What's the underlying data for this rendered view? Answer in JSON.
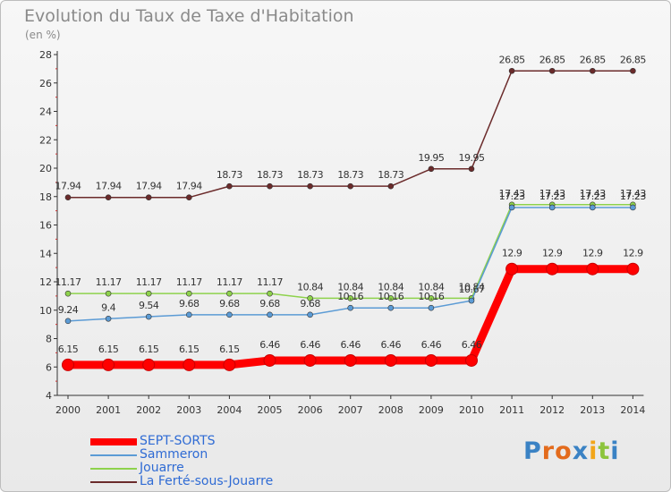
{
  "chart_data": {
    "type": "line",
    "title": "Evolution du Taux de Taxe d'Habitation",
    "subtitle": "(en %)",
    "x": [
      "2000",
      "2001",
      "2002",
      "2003",
      "2004",
      "2005",
      "2006",
      "2007",
      "2008",
      "2009",
      "2010",
      "2011",
      "2012",
      "2013",
      "2014"
    ],
    "ylim": [
      4,
      28
    ],
    "yticks": [
      4,
      6,
      8,
      10,
      12,
      14,
      16,
      18,
      20,
      22,
      24,
      26,
      28
    ],
    "grid": false,
    "legend_position": "bottom-left",
    "series": [
      {
        "name": "SEPT-SORTS",
        "color": "#ff0000",
        "values": [
          6.15,
          6.15,
          6.15,
          6.15,
          6.15,
          6.46,
          6.46,
          6.46,
          6.46,
          6.46,
          6.46,
          12.9,
          12.9,
          12.9,
          12.9
        ],
        "labels": [
          "6.15",
          "6.15",
          "6.15",
          "6.15",
          "6.15",
          "6.46",
          "6.46",
          "6.46",
          "6.46",
          "6.46",
          "6.46",
          "12.9",
          "12.9",
          "12.9",
          "12.9"
        ]
      },
      {
        "name": "Sammeron",
        "color": "#5b9bd5",
        "values": [
          9.24,
          9.4,
          9.54,
          9.68,
          9.68,
          9.68,
          9.68,
          10.16,
          10.16,
          10.16,
          10.67,
          17.23,
          17.23,
          17.23,
          17.23
        ],
        "labels": [
          "9.24",
          "9.4",
          "9.54",
          "9.68",
          "9.68",
          "9.68",
          "9.68",
          "10.16",
          "10.16",
          "10.16",
          "10.67",
          "17.23",
          "17.23",
          "17.23",
          "17.23"
        ]
      },
      {
        "name": "Jouarre",
        "color": "#8ed24c",
        "values": [
          11.17,
          11.17,
          11.17,
          11.17,
          11.17,
          11.17,
          10.84,
          10.84,
          10.84,
          10.84,
          10.84,
          17.43,
          17.43,
          17.43,
          17.43
        ],
        "labels": [
          "11.17",
          "11.17",
          "11.17",
          "11.17",
          "11.17",
          "11.17",
          "10.84",
          "10.84",
          "10.84",
          "10.84",
          "10.84",
          "17.43",
          "17.43",
          "17.43",
          "17.43"
        ]
      },
      {
        "name": "La Ferté-sous-Jouarre",
        "color": "#6b2b2b",
        "values": [
          17.94,
          17.94,
          17.94,
          17.94,
          18.73,
          18.73,
          18.73,
          18.73,
          18.73,
          19.95,
          19.95,
          26.85,
          26.85,
          26.85,
          26.85
        ],
        "labels": [
          "17.94",
          "17.94",
          "17.94",
          "17.94",
          "18.73",
          "18.73",
          "18.73",
          "18.73",
          "18.73",
          "19.95",
          "19.95",
          "26.85",
          "26.85",
          "26.85",
          "26.85"
        ]
      }
    ]
  },
  "logo": {
    "text": "Proxiti",
    "letters": [
      "P",
      "r",
      "o",
      "x",
      "i",
      "t",
      "i"
    ],
    "colors": [
      "#3a82c4",
      "#e36b1c",
      "#e36b1c",
      "#3a82c4",
      "#f2a51a",
      "#8cc43c",
      "#3a82c4"
    ]
  }
}
